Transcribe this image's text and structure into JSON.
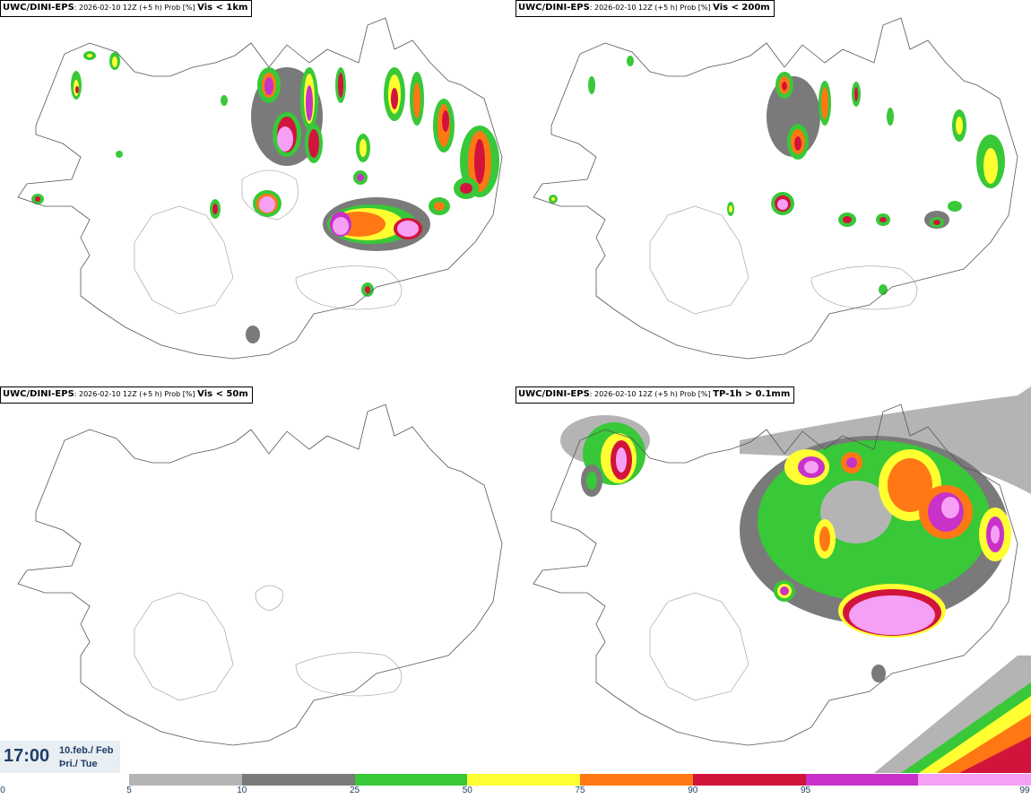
{
  "panels": [
    {
      "source": "UWC/DINI-EPS",
      "run": ": 2026-02-10 12Z (+5 h) Prob [%] ",
      "threshold": "Vis < 1km"
    },
    {
      "source": "UWC/DINI-EPS",
      "run": ": 2026-02-10 12Z (+5 h) Prob [%] ",
      "threshold": "Vis < 200m"
    },
    {
      "source": "UWC/DINI-EPS",
      "run": ": 2026-02-10 12Z (+5 h) Prob [%] ",
      "threshold": "Vis < 50m"
    },
    {
      "source": "UWC/DINI-EPS",
      "run": ": 2026-02-10 12Z (+5 h) Prob [%] ",
      "threshold": "TP-1h > 0.1mm"
    }
  ],
  "time": {
    "clock": "17:00",
    "date_line1": "10.feb./ Feb",
    "date_line2": "Þri./ Tue"
  },
  "legend": {
    "ticks": [
      "0",
      "5",
      "10",
      "25",
      "50",
      "75",
      "90",
      "95",
      "99"
    ],
    "colors": [
      "#b4b4b4",
      "#7a7a7a",
      "#38c838",
      "#ffff32",
      "#ff7814",
      "#d2143c",
      "#c832c8",
      "#f5a0f5"
    ]
  }
}
